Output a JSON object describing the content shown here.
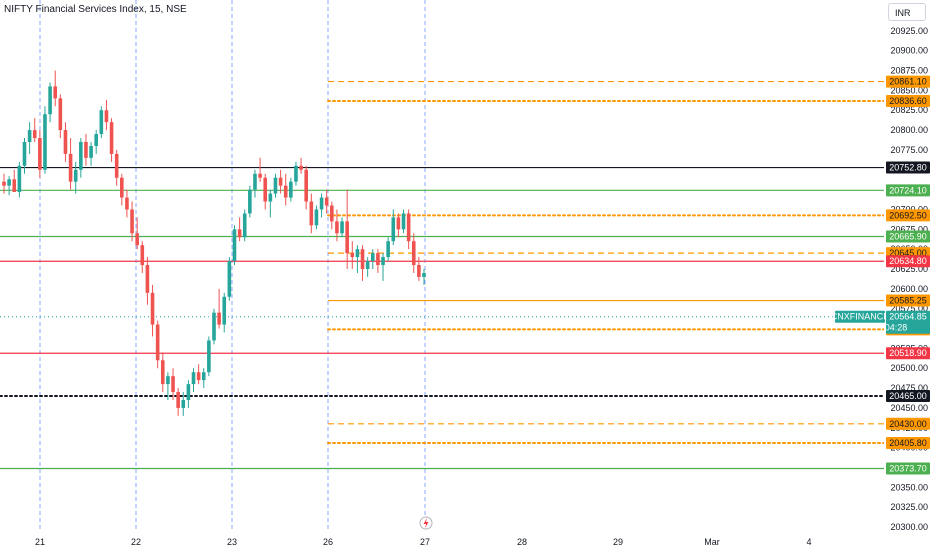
{
  "header": {
    "title": "NIFTY Financial Services Index, 15, NSE",
    "currency": "INR"
  },
  "chart_data": {
    "type": "candlestick",
    "symbol": "CNXFINANCE",
    "last_price": 20564.85,
    "countdown": "04:28",
    "ylim": [
      20300,
      20950
    ],
    "y_ticks": [
      20300,
      20325,
      20350,
      20375,
      20400,
      20425,
      20450,
      20475,
      20500,
      20525,
      20550,
      20575,
      20600,
      20625,
      20650,
      20675,
      20700,
      20725,
      20750,
      20775,
      20800,
      20825,
      20850,
      20875,
      20900,
      20925
    ],
    "x_labels": [
      "21",
      "22",
      "23",
      "26",
      "27",
      "28",
      "29",
      "Mar",
      "4"
    ],
    "session_separators": [
      "21",
      "22",
      "23",
      "26",
      "27"
    ],
    "levels": [
      {
        "price": 20861.1,
        "label": "20861.10",
        "style": "dashed",
        "color": "#ff9800",
        "start": "26"
      },
      {
        "price": 20836.6,
        "label": "20836.60",
        "style": "dotted",
        "color": "#ff9800",
        "start": "26"
      },
      {
        "price": 20752.8,
        "label": "20752.80",
        "style": "solid",
        "color": "#131722",
        "start": "all"
      },
      {
        "price": 20724.1,
        "label": "20724.10",
        "style": "solid",
        "color": "#4caf50",
        "start": "all"
      },
      {
        "price": 20692.5,
        "label": "20692.50",
        "style": "dotted",
        "color": "#ff9800",
        "start": "26"
      },
      {
        "price": 20665.9,
        "label": "20665.90",
        "style": "solid",
        "color": "#4caf50",
        "start": "all"
      },
      {
        "price": 20645.0,
        "label": "20645.00",
        "style": "dashed",
        "color": "#ff9800",
        "start": "26"
      },
      {
        "price": 20634.8,
        "label": "20634.80",
        "style": "solid",
        "color": "#f23645",
        "start": "all"
      },
      {
        "price": 20585.25,
        "label": "20585.25",
        "style": "solid",
        "color": "#ff9800",
        "start": "26"
      },
      {
        "price": 20548.9,
        "label": "20548.90",
        "style": "dotted",
        "color": "#ff9800",
        "start": "26"
      },
      {
        "price": 20518.9,
        "label": "20518.90",
        "style": "solid",
        "color": "#f23645",
        "start": "all"
      },
      {
        "price": 20465.0,
        "label": "20465.00",
        "style": "dotted",
        "color": "#131722",
        "start": "all"
      },
      {
        "price": 20430.0,
        "label": "20430.00",
        "style": "dashed",
        "color": "#ff9800",
        "start": "26"
      },
      {
        "price": 20405.8,
        "label": "20405.80",
        "style": "dotted",
        "color": "#ff9800",
        "start": "26"
      },
      {
        "price": 20373.7,
        "label": "20373.70",
        "style": "solid",
        "color": "#4caf50",
        "start": "all"
      }
    ],
    "candles": [
      [
        20735,
        20745,
        20720,
        20730
      ],
      [
        20730,
        20742,
        20718,
        20738
      ],
      [
        20738,
        20750,
        20728,
        20722
      ],
      [
        20722,
        20760,
        20715,
        20755
      ],
      [
        20755,
        20790,
        20745,
        20785
      ],
      [
        20785,
        20810,
        20770,
        20800
      ],
      [
        20800,
        20815,
        20785,
        20790
      ],
      [
        20790,
        20800,
        20740,
        20750
      ],
      [
        20750,
        20830,
        20745,
        20820
      ],
      [
        20820,
        20860,
        20810,
        20855
      ],
      [
        20855,
        20875,
        20830,
        20840
      ],
      [
        20840,
        20845,
        20790,
        20800
      ],
      [
        20800,
        20810,
        20760,
        20770
      ],
      [
        20770,
        20790,
        20725,
        20735
      ],
      [
        20735,
        20760,
        20720,
        20750
      ],
      [
        20750,
        20790,
        20740,
        20785
      ],
      [
        20785,
        20795,
        20755,
        20765
      ],
      [
        20765,
        20785,
        20755,
        20780
      ],
      [
        20780,
        20800,
        20770,
        20795
      ],
      [
        20795,
        20830,
        20790,
        20825
      ],
      [
        20825,
        20838,
        20800,
        20810
      ],
      [
        20810,
        20815,
        20760,
        20770
      ],
      [
        20770,
        20775,
        20730,
        20740
      ],
      [
        20740,
        20745,
        20705,
        20715
      ],
      [
        20715,
        20725,
        20690,
        20700
      ],
      [
        20700,
        20710,
        20660,
        20670
      ],
      [
        20670,
        20690,
        20650,
        20655
      ],
      [
        20655,
        20660,
        20620,
        20630
      ],
      [
        20630,
        20640,
        20580,
        20595
      ],
      [
        20595,
        20605,
        20540,
        20555
      ],
      [
        20555,
        20560,
        20500,
        20510
      ],
      [
        20510,
        20520,
        20470,
        20480
      ],
      [
        20480,
        20495,
        20460,
        20490
      ],
      [
        20490,
        20500,
        20460,
        20470
      ],
      [
        20470,
        20475,
        20440,
        20450
      ],
      [
        20450,
        20470,
        20440,
        20460
      ],
      [
        20460,
        20485,
        20450,
        20480
      ],
      [
        20480,
        20500,
        20470,
        20495
      ],
      [
        20495,
        20505,
        20480,
        20485
      ],
      [
        20485,
        20500,
        20475,
        20495
      ],
      [
        20495,
        20540,
        20490,
        20535
      ],
      [
        20535,
        20575,
        20530,
        20570
      ],
      [
        20570,
        20600,
        20550,
        20555
      ],
      [
        20555,
        20595,
        20545,
        20590
      ],
      [
        20590,
        20640,
        20585,
        20635
      ],
      [
        20635,
        20680,
        20630,
        20675
      ],
      [
        20675,
        20690,
        20660,
        20665
      ],
      [
        20665,
        20700,
        20660,
        20695
      ],
      [
        20695,
        20730,
        20690,
        20725
      ],
      [
        20725,
        20750,
        20715,
        20745
      ],
      [
        20745,
        20765,
        20735,
        20740
      ],
      [
        20740,
        20745,
        20700,
        20710
      ],
      [
        20710,
        20725,
        20690,
        20720
      ],
      [
        20720,
        20745,
        20715,
        20740
      ],
      [
        20740,
        20750,
        20720,
        20730
      ],
      [
        20730,
        20745,
        20705,
        20715
      ],
      [
        20715,
        20740,
        20710,
        20735
      ],
      [
        20735,
        20760,
        20730,
        20755
      ],
      [
        20755,
        20765,
        20745,
        20750
      ],
      [
        20750,
        20755,
        20700,
        20710
      ],
      [
        20710,
        20720,
        20670,
        20680
      ],
      [
        20680,
        20705,
        20675,
        20700
      ],
      [
        20700,
        20720,
        20690,
        20715
      ],
      [
        20715,
        20725,
        20695,
        20705
      ],
      [
        20705,
        20710,
        20675,
        20685
      ],
      [
        20685,
        20700,
        20660,
        20670
      ],
      [
        20670,
        20690,
        20665,
        20685
      ],
      [
        20685,
        20725,
        20625,
        20645
      ],
      [
        20645,
        20660,
        20625,
        20640
      ],
      [
        20640,
        20655,
        20620,
        20650
      ],
      [
        20650,
        20655,
        20610,
        20625
      ],
      [
        20625,
        20640,
        20615,
        20635
      ],
      [
        20635,
        20650,
        20625,
        20645
      ],
      [
        20645,
        20650,
        20620,
        20630
      ],
      [
        20630,
        20645,
        20610,
        20640
      ],
      [
        20640,
        20665,
        20635,
        20660
      ],
      [
        20660,
        20700,
        20655,
        20690
      ],
      [
        20690,
        20695,
        20665,
        20675
      ],
      [
        20675,
        20700,
        20670,
        20695
      ],
      [
        20695,
        20700,
        20650,
        20660
      ],
      [
        20660,
        20670,
        20620,
        20630
      ],
      [
        20630,
        20640,
        20610,
        20615
      ],
      [
        20615,
        20625,
        20605,
        20620
      ]
    ]
  },
  "last_price_tag": {
    "symbol": "CNXFINANCE",
    "price": "20564.85",
    "countdown": "04:28"
  },
  "colors": {
    "up": "#26a69a",
    "down": "#ef5350",
    "separator": "#2962ff"
  }
}
